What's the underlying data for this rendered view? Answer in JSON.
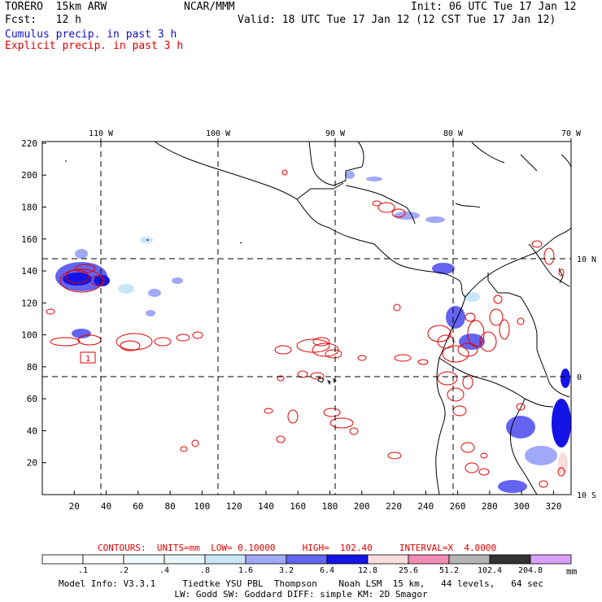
{
  "header": {
    "model": "TORERO  15km ARW",
    "org": "NCAR/MMM",
    "init": "Init: 06 UTC Tue 17 Jan 12",
    "fcst": "Fcst:   12 h",
    "valid": "Valid: 18 UTC Tue 17 Jan 12 (12 CST Tue 17 Jan 12)",
    "field1": "Cumulus precip. in past 3 h",
    "field2": "Explicit precip. in past 3 h",
    "field1_color": "#1010c8",
    "field2_color": "#e00000"
  },
  "axes": {
    "lon_labels": [
      "110 W",
      "100 W",
      "90 W",
      "80 W",
      "70 W"
    ],
    "lat_labels": [
      "10 N",
      "0",
      "10 S"
    ],
    "x_ticks": [
      "20",
      "40",
      "60",
      "80",
      "100",
      "120",
      "140",
      "160",
      "180",
      "200",
      "220",
      "240",
      "260",
      "280",
      "300",
      "320"
    ],
    "y_ticks": [
      "220",
      "200",
      "180",
      "160",
      "140",
      "120",
      "100",
      "80",
      "60",
      "40",
      "20"
    ]
  },
  "contour_info": {
    "label": "CONTOURS:  UNITS=mm  LOW= 0.10000     HIGH=  102.40     INTERVAL=X  4.0000"
  },
  "colorbar": {
    "labels": [
      ".1",
      ".2",
      ".4",
      ".8",
      "1.6",
      "3.2",
      "6.4",
      "12.8",
      "25.6",
      "51.2",
      "102.4",
      "204.8"
    ],
    "units": "mm",
    "colors": [
      "#ffffff",
      "#ffffff",
      "#f0fbff",
      "#e6f8fa",
      "#c8e6f8",
      "#a0a8f8",
      "#6464f0",
      "#1414e6",
      "#fadcdc",
      "#f28cb4",
      "#b4b4b4",
      "#323232",
      "#dca0f8"
    ]
  },
  "footer": {
    "line1": "Model Info: V3.3.1     Tiedtke YSU PBL  Thompson    Noah LSM  15 km,   44 levels,   64 sec",
    "line2": "LW: Godd SW: Goddard DIFF: simple KM: 2D Smagor"
  },
  "map_box": "1"
}
